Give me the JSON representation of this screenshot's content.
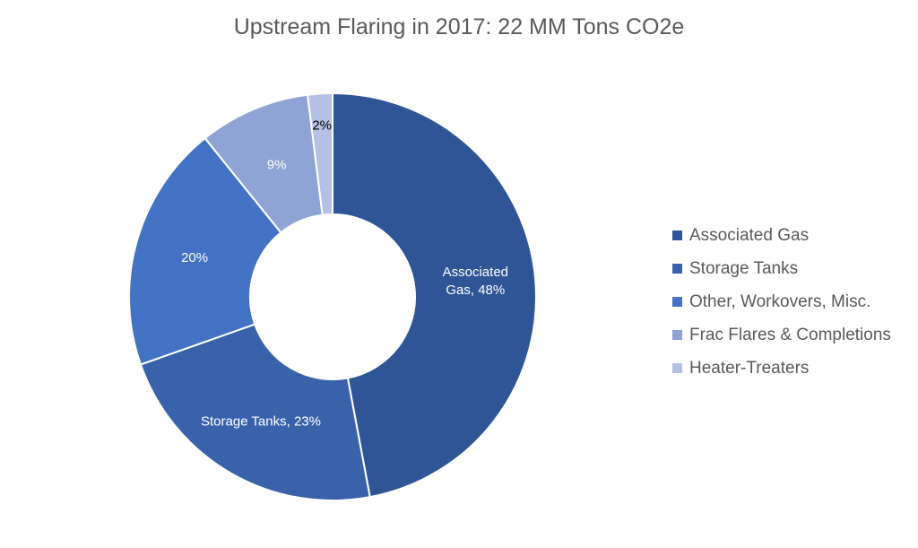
{
  "chart_data": {
    "type": "pie",
    "variant": "donut",
    "title": "Upstream Flaring in 2017: 22 MM Tons CO2e",
    "slices": [
      {
        "name": "Associated Gas",
        "value": 48,
        "label": "Associated Gas, 48%",
        "color": "#2F5597",
        "label_color": "#ffffff"
      },
      {
        "name": "Storage Tanks",
        "value": 23,
        "label": "Storage Tanks, 23%",
        "color": "#3A62AA",
        "label_color": "#ffffff"
      },
      {
        "name": "Other, Workovers, Misc.",
        "value": 20,
        "label": "20%",
        "color": "#4472C4",
        "label_color": "#ffffff"
      },
      {
        "name": "Frac Flares & Completions",
        "value": 9,
        "label": "9%",
        "color": "#8FA3D5",
        "label_color": "#ffffff"
      },
      {
        "name": "Heater-Treaters",
        "value": 2,
        "label": "2%",
        "color": "#B4C1E5",
        "label_color": "#000000"
      }
    ],
    "legend": "right"
  }
}
